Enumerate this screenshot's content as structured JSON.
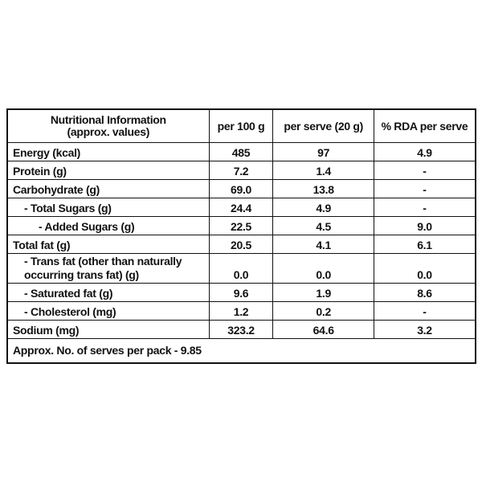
{
  "table": {
    "header": [
      [
        "Nutritional Information",
        "(approx. values)"
      ],
      "per 100 g",
      "per serve (20 g)",
      "% RDA per serve"
    ],
    "rows": [
      [
        "Energy (kcal)",
        "485",
        "97",
        "4.9"
      ],
      [
        "Protein (g)",
        "7.2",
        "1.4",
        "-"
      ],
      [
        "Carbohydrate (g)",
        "69.0",
        "13.8",
        "-"
      ],
      [
        "- Total Sugars (g)",
        "24.4",
        "4.9",
        "-"
      ],
      [
        "- Added Sugars (g)",
        "22.5",
        "4.5",
        "9.0"
      ],
      [
        "Total fat (g)",
        "20.5",
        "4.1",
        "6.1"
      ],
      [
        "- Trans fat (other than naturally occurring trans fat) (g)",
        "0.0",
        "0.0",
        "0.0"
      ],
      [
        "- Saturated fat (g)",
        "9.6",
        "1.9",
        "8.6"
      ],
      [
        "- Cholesterol (mg)",
        "1.2",
        "0.2",
        "-"
      ],
      [
        "Sodium (mg)",
        "323.2",
        "64.6",
        "3.2"
      ]
    ],
    "footer": "Approx. No. of serves per pack - 9.85"
  }
}
